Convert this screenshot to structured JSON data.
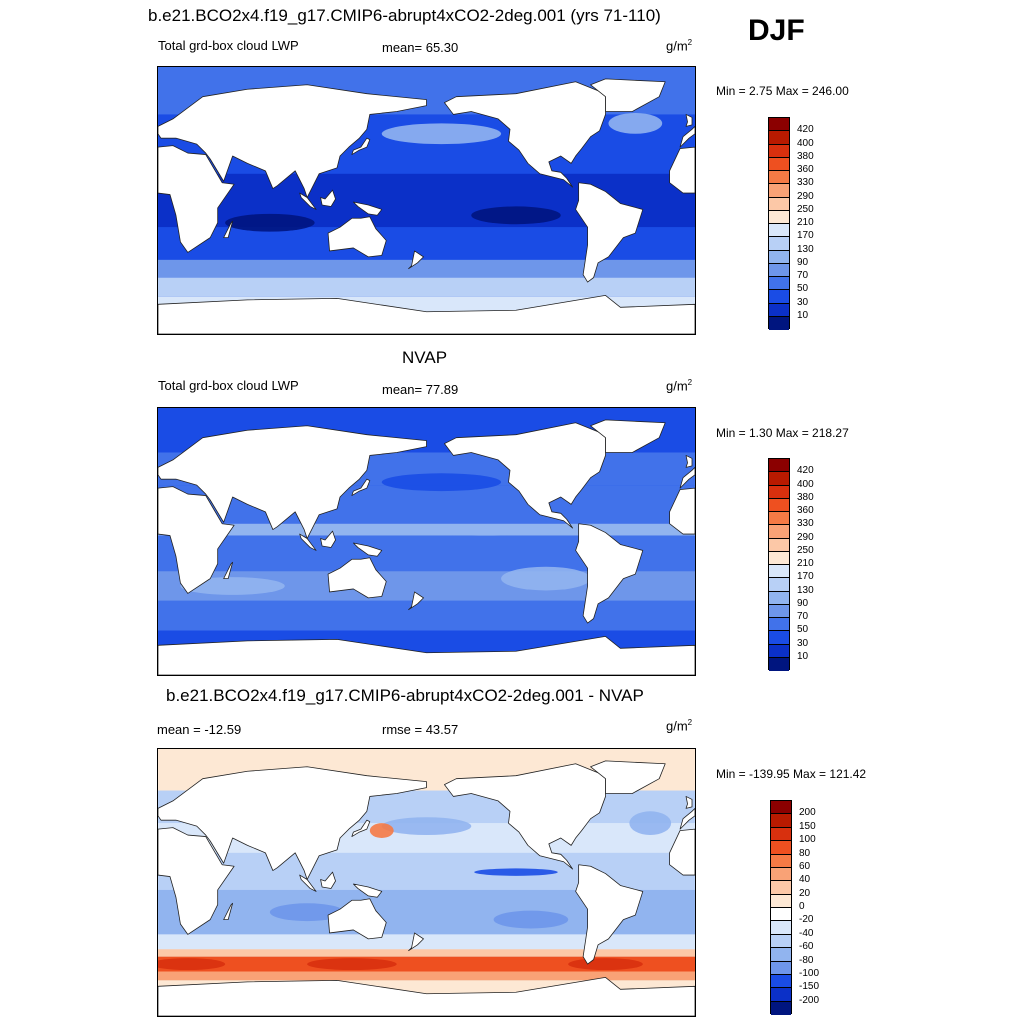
{
  "season": "DJF",
  "colors": {
    "land": "#ffffff",
    "coast": "#222222"
  },
  "chart_data": [
    {
      "type": "heatmap",
      "id": "model",
      "title": "b.e21.BCO2x4.f19_g17.CMIP6-abrupt4xCO2-2deg.001 (yrs 71-110)",
      "left_label": "Total grd-box cloud LWP",
      "center_label": "mean=  65.30",
      "units_base": "g/m",
      "units_exp": "2",
      "minmax": "Min =   2.75 Max = 246.00",
      "x_range": [
        0,
        360
      ],
      "y_range": [
        -90,
        90
      ],
      "levels": [
        "420",
        "400",
        "380",
        "360",
        "330",
        "290",
        "250",
        "210",
        "170",
        "130",
        "90",
        "70",
        "50",
        "30",
        "10"
      ],
      "level_colors": [
        "#8b0000",
        "#b81a00",
        "#d8300e",
        "#ee5020",
        "#f57a45",
        "#f9a276",
        "#fcc8a7",
        "#fde8d4",
        "#d9e7fa",
        "#b8d0f6",
        "#91b4ef",
        "#6e96ea",
        "#4172ea",
        "#1a4ce5",
        "#0b30c8",
        "#00157f"
      ],
      "regions": [
        {
          "name": "southern-ocean-band",
          "value": 130,
          "color": "#b8d0f6"
        },
        {
          "name": "subtropical-band",
          "value": 50,
          "color": "#1a4ce5"
        },
        {
          "name": "tropical-band",
          "value": 30,
          "color": "#0b30c8"
        },
        {
          "name": "north-pacific-storm-track",
          "value": 90,
          "color": "#91b4ef"
        },
        {
          "name": "north-atlantic-storm-track",
          "value": 90,
          "color": "#91b4ef"
        }
      ]
    },
    {
      "type": "heatmap",
      "id": "obs",
      "title": "NVAP",
      "left_label": "Total grd-box cloud LWP",
      "center_label": "mean=  77.89",
      "units_base": "g/m",
      "units_exp": "2",
      "minmax": "Min =   1.30 Max = 218.27",
      "x_range": [
        0,
        360
      ],
      "y_range": [
        -90,
        90
      ],
      "levels": [
        "420",
        "400",
        "380",
        "360",
        "330",
        "290",
        "250",
        "210",
        "170",
        "130",
        "90",
        "70",
        "50",
        "30",
        "10"
      ],
      "level_colors": [
        "#8b0000",
        "#b81a00",
        "#d8300e",
        "#ee5020",
        "#f57a45",
        "#f9a276",
        "#fcc8a7",
        "#fde8d4",
        "#d9e7fa",
        "#b8d0f6",
        "#91b4ef",
        "#6e96ea",
        "#4172ea",
        "#1a4ce5",
        "#0b30c8",
        "#00157f"
      ],
      "regions": [
        {
          "name": "southern-ocean-band",
          "value": 70,
          "color": "#4172ea"
        },
        {
          "name": "subtropical-band",
          "value": 70,
          "color": "#6e96ea"
        },
        {
          "name": "tropical-band",
          "value": 50,
          "color": "#4172ea"
        },
        {
          "name": "itcz-band",
          "value": 90,
          "color": "#91b4ef"
        },
        {
          "name": "north-pacific-storm-track",
          "value": 50,
          "color": "#1a4ce5"
        }
      ]
    },
    {
      "type": "heatmap",
      "id": "diff",
      "title": "b.e21.BCO2x4.f19_g17.CMIP6-abrupt4xCO2-2deg.001 - NVAP",
      "left_label": "mean = -12.59",
      "center_label": "rmse =  43.57",
      "units_base": "g/m",
      "units_exp": "2",
      "minmax": "Min = -139.95 Max = 121.42",
      "x_range": [
        0,
        360
      ],
      "y_range": [
        -90,
        90
      ],
      "levels": [
        "200",
        "150",
        "100",
        "80",
        "60",
        "40",
        "20",
        "0",
        "-20",
        "-40",
        "-60",
        "-80",
        "-100",
        "-150",
        "-200"
      ],
      "level_colors": [
        "#8b0000",
        "#b81a00",
        "#d8300e",
        "#ee5020",
        "#f57a45",
        "#f9a276",
        "#fcc8a7",
        "#fde8d4",
        "#ffffff",
        "#d9e7fa",
        "#b8d0f6",
        "#91b4ef",
        "#6e96ea",
        "#1a4ce5",
        "#0b30c8",
        "#00157f"
      ],
      "regions": [
        {
          "name": "southern-ocean-positive-band",
          "value": 80,
          "color": "#ee5020"
        },
        {
          "name": "southern-ocean-edge",
          "value": 20,
          "color": "#fcc8a7"
        },
        {
          "name": "subtropical-negative",
          "value": -40,
          "color": "#b8d0f6"
        },
        {
          "name": "tropical-negative",
          "value": -40,
          "color": "#d9e7fa"
        },
        {
          "name": "itcz-strong-negative",
          "value": -100,
          "color": "#1a4ce5"
        },
        {
          "name": "north-pacific-negative",
          "value": -60,
          "color": "#91b4ef"
        }
      ]
    }
  ]
}
